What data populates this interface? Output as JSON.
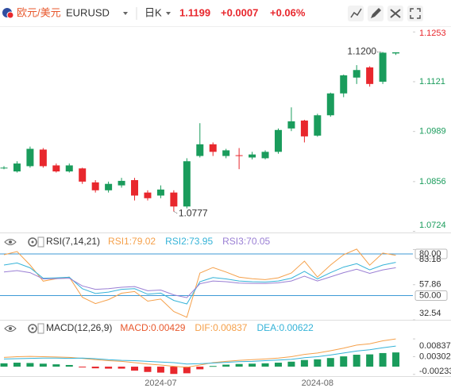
{
  "header": {
    "symbol_name": "欧元/美元",
    "symbol": "EURUSD",
    "period": "日K",
    "price": "1.1199",
    "change": "+0.0007",
    "change_pct": "+0.06%"
  },
  "chart_data": [
    {
      "type": "candlestick",
      "open": [
        1.0891,
        1.0883,
        1.0897,
        1.0941,
        1.0899,
        1.0883,
        1.0891,
        1.0854,
        1.0833,
        1.0846,
        1.086,
        1.0827,
        1.0819,
        1.0827,
        1.079,
        1.0924,
        1.0955,
        1.0924,
        1.0926,
        1.092,
        1.0918,
        1.0935,
        1.0997,
        1.1018,
        1.0978,
        1.1032,
        1.109,
        1.1132,
        1.1159,
        1.1121,
        1.1196
      ],
      "high": [
        1.0897,
        1.091,
        1.0949,
        1.0945,
        1.0904,
        1.0904,
        1.0893,
        1.086,
        1.0856,
        1.0866,
        1.0866,
        1.0833,
        1.0846,
        1.0833,
        1.0918,
        1.1011,
        1.096,
        1.0943,
        1.0945,
        1.0935,
        1.0939,
        1.0997,
        1.1053,
        1.102,
        1.1036,
        1.1092,
        1.114,
        1.1165,
        1.1162,
        1.12,
        1.1199
      ],
      "low": [
        1.0889,
        1.088,
        1.0893,
        1.0893,
        1.088,
        1.088,
        1.085,
        1.0827,
        1.0827,
        1.084,
        1.0806,
        1.0806,
        1.0812,
        1.0777,
        1.0785,
        1.092,
        1.0924,
        1.0918,
        1.0889,
        1.0915,
        1.0915,
        1.093,
        1.099,
        1.096,
        1.0975,
        1.1028,
        1.108,
        1.1115,
        1.1108,
        1.1115,
        1.1192
      ],
      "close": [
        1.0893,
        1.0904,
        1.0943,
        1.0897,
        1.0883,
        1.0899,
        1.0856,
        1.0833,
        1.085,
        1.0858,
        1.0819,
        1.0812,
        1.0835,
        1.079,
        1.091,
        1.0955,
        1.0935,
        1.0939,
        1.0924,
        1.0928,
        1.0935,
        1.0993,
        1.1016,
        1.0976,
        1.1032,
        1.109,
        1.1138,
        1.1152,
        1.1115,
        1.1198,
        1.1199
      ],
      "up_color": "#1a9c5c",
      "down_color": "#e8272d",
      "ylim": [
        1.0721,
        1.1262
      ],
      "yticks": [
        1.1253,
        1.1121,
        1.0989,
        1.0856,
        1.0724
      ],
      "ytick_colors": [
        "#e8272d",
        "#1a9c5c",
        "#1a9c5c",
        "#1a9c5c",
        "#1a9c5c"
      ],
      "annotations": [
        {
          "value": 1.12,
          "label": "1.1200"
        },
        {
          "value": 1.0777,
          "label": "1.0777"
        }
      ]
    },
    {
      "type": "line",
      "title": "RSI(7,14,21)",
      "series": [
        {
          "name": "RSI1:79.02",
          "color": "#f5a04a",
          "values": [
            79.4,
            81.7,
            72.0,
            60.4,
            62.1,
            63.3,
            48.8,
            44.2,
            47.1,
            51.7,
            52.9,
            46.0,
            47.5,
            38.5,
            34.4,
            66.2,
            70.2,
            67.0,
            63.3,
            62.1,
            61.5,
            62.8,
            66.2,
            74.8,
            63.3,
            72.0,
            79.4,
            83.5,
            71.9,
            80.6,
            79.02
          ]
        },
        {
          "name": "RSI2:73.95",
          "color": "#35b3d8",
          "values": [
            72.0,
            73.5,
            70.0,
            62.5,
            62.8,
            63.2,
            55.0,
            51.5,
            52.5,
            54.5,
            55.0,
            51.0,
            51.8,
            46.5,
            44.0,
            60.0,
            63.0,
            62.0,
            60.5,
            60.0,
            59.8,
            60.5,
            62.5,
            67.5,
            62.0,
            66.5,
            70.5,
            73.0,
            68.5,
            72.0,
            73.95
          ]
        },
        {
          "name": "RSI3:70.05",
          "color": "#9a7fd4",
          "values": [
            67.0,
            68.0,
            66.5,
            62.0,
            62.2,
            62.5,
            57.0,
            54.5,
            55.0,
            56.0,
            56.5,
            53.5,
            54.0,
            50.5,
            48.5,
            58.5,
            60.5,
            60.0,
            59.0,
            58.8,
            58.7,
            59.2,
            60.5,
            64.0,
            60.5,
            63.5,
            66.5,
            69.0,
            66.0,
            68.5,
            70.05
          ]
        }
      ],
      "ylim": [
        32,
        92
      ],
      "yticks": [
        83.18,
        57.86,
        32.54
      ],
      "reference_lines": [
        {
          "value": 80,
          "label": "80.00"
        },
        {
          "value": 50,
          "label": "50.00"
        }
      ],
      "reference_color": "#3d9ad6"
    },
    {
      "type": "macd",
      "title": "MACD(12,26,9)",
      "categories": [
        null,
        null,
        null,
        null,
        null,
        null,
        null,
        null,
        null,
        null,
        null,
        null,
        "2024-07",
        null,
        null,
        null,
        null,
        null,
        null,
        null,
        null,
        null,
        null,
        null,
        "2024-08",
        null,
        null,
        null,
        null,
        null,
        null
      ],
      "series": [
        {
          "name": "MACD:0.00429",
          "type": "bar",
          "up_color": "#1a9c5c",
          "down_color": "#e8272d",
          "values": [
            0.001,
            0.0012,
            0.0011,
            0.0009,
            0.0007,
            0.0005,
            -0.0002,
            -0.0005,
            -0.0006,
            -0.0006,
            -0.0012,
            -0.0016,
            -0.0018,
            -0.0022,
            -0.002,
            -0.0008,
            0.0002,
            0.0006,
            0.0008,
            0.0009,
            0.001,
            0.0012,
            0.0015,
            0.002,
            0.0022,
            0.0026,
            0.0031,
            0.0036,
            0.0037,
            0.0041,
            0.00429
          ]
        },
        {
          "name": "DIF:0.00837",
          "type": "line",
          "color": "#f5a04a",
          "values": [
            0.0028,
            0.003,
            0.0031,
            0.003,
            0.0029,
            0.0028,
            0.0025,
            0.0021,
            0.0018,
            0.0016,
            0.0012,
            0.0008,
            0.0005,
            0.0001,
            -0.0002,
            0.0005,
            0.0012,
            0.0016,
            0.0019,
            0.0021,
            0.0023,
            0.0026,
            0.003,
            0.0037,
            0.0041,
            0.0048,
            0.0056,
            0.0065,
            0.0069,
            0.0078,
            0.00837
          ]
        },
        {
          "name": "DEA:0.00622",
          "type": "line",
          "color": "#35b3d8",
          "values": [
            0.0023,
            0.0024,
            0.0025,
            0.0026,
            0.0026,
            0.0025,
            0.0026,
            0.0024,
            0.0021,
            0.0019,
            0.0018,
            0.0016,
            0.0014,
            0.0012,
            0.0008,
            0.0009,
            0.0011,
            0.0013,
            0.0015,
            0.0016,
            0.0018,
            0.002,
            0.0022,
            0.0027,
            0.003,
            0.0035,
            0.0041,
            0.0047,
            0.0051,
            0.0057,
            0.00622
          ]
        }
      ],
      "ylim": [
        -0.0031,
        0.0139
      ],
      "yticks": [
        0.00837,
        0.00302,
        -0.00233
      ]
    }
  ]
}
